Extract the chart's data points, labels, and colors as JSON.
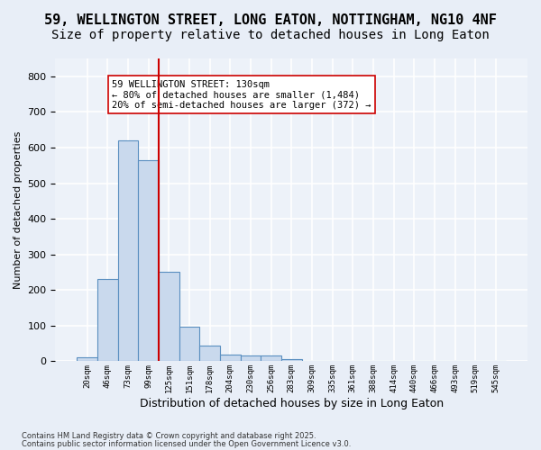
{
  "title_line1": "59, WELLINGTON STREET, LONG EATON, NOTTINGHAM, NG10 4NF",
  "title_line2": "Size of property relative to detached houses in Long Eaton",
  "xlabel": "Distribution of detached houses by size in Long Eaton",
  "ylabel": "Number of detached properties",
  "bar_color": "#c9d9ed",
  "bar_edge_color": "#5a8fc0",
  "bins": [
    "20sqm",
    "46sqm",
    "73sqm",
    "99sqm",
    "125sqm",
    "151sqm",
    "178sqm",
    "204sqm",
    "230sqm",
    "256sqm",
    "283sqm",
    "309sqm",
    "335sqm",
    "361sqm",
    "388sqm",
    "414sqm",
    "440sqm",
    "466sqm",
    "493sqm",
    "519sqm",
    "545sqm"
  ],
  "values": [
    10,
    232,
    620,
    565,
    250,
    98,
    45,
    20,
    17,
    15,
    7,
    2,
    1,
    0,
    0,
    0,
    0,
    0,
    0,
    0,
    0
  ],
  "vline_x": 4,
  "vline_color": "#cc0000",
  "annotation_text": "59 WELLINGTON STREET: 130sqm\n← 80% of detached houses are smaller (1,484)\n20% of semi-detached houses are larger (372) →",
  "ylim": [
    0,
    850
  ],
  "yticks": [
    0,
    100,
    200,
    300,
    400,
    500,
    600,
    700,
    800
  ],
  "footer_line1": "Contains HM Land Registry data © Crown copyright and database right 2025.",
  "footer_line2": "Contains public sector information licensed under the Open Government Licence v3.0.",
  "bg_color": "#e8eef7",
  "plot_bg_color": "#edf2f9",
  "grid_color": "#ffffff",
  "title_fontsize": 11,
  "subtitle_fontsize": 10
}
